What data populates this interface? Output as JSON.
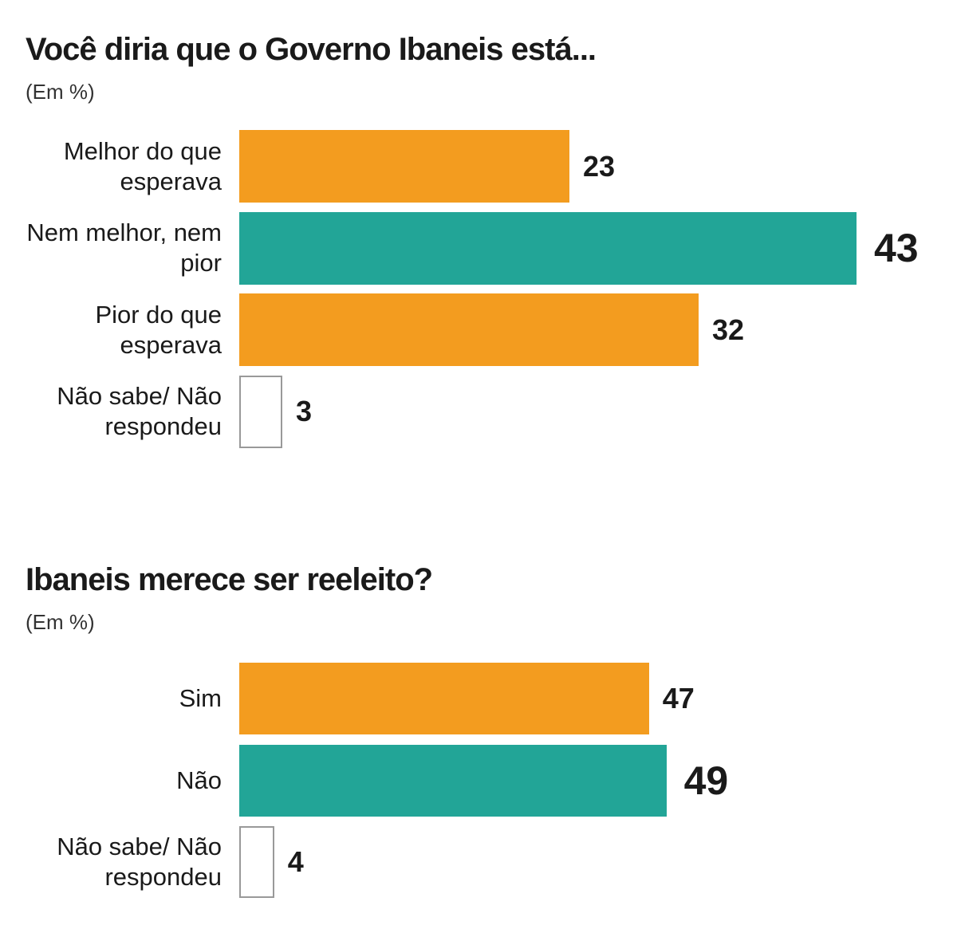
{
  "chart_data": [
    {
      "type": "bar",
      "title": "Você diria que o Governo Ibaneis está...",
      "subtitle": "(Em %)",
      "categories": [
        "Melhor do que esperava",
        "Nem melhor, nem pior",
        "Pior do que esperava",
        "Não sabe/ Não respondeu"
      ],
      "values": [
        23,
        43,
        32,
        3
      ],
      "colors": [
        "#f39c1f",
        "#22a597",
        "#f39c1f",
        "#ffffff"
      ]
    },
    {
      "type": "bar",
      "title": "Ibaneis merece ser reeleito?",
      "subtitle": "(Em %)",
      "categories": [
        "Sim",
        "Não",
        "Não sabe/ Não respondeu"
      ],
      "values": [
        47,
        49,
        4
      ],
      "colors": [
        "#f39c1f",
        "#22a597",
        "#ffffff"
      ]
    }
  ]
}
